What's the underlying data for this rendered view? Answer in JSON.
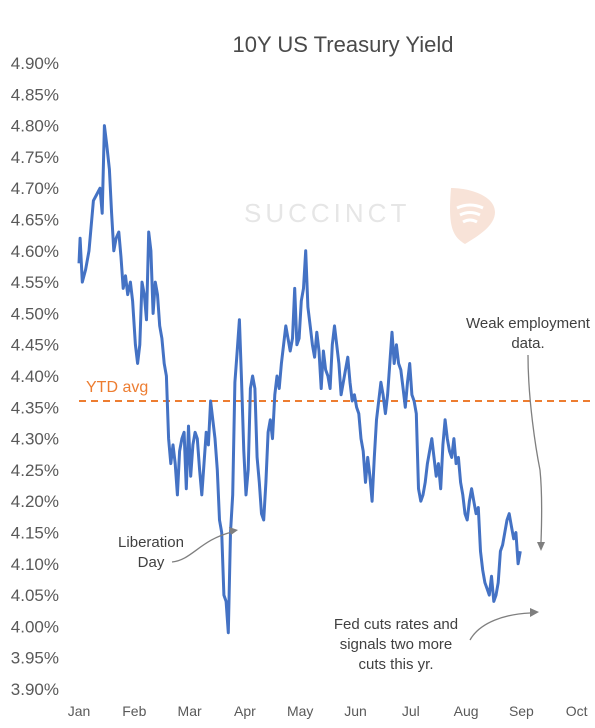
{
  "chart_data": {
    "type": "line",
    "title": "10Y US Treasury Yield",
    "watermark": "SUCCINCT",
    "ylim": [
      3.9,
      4.9
    ],
    "yticks": [
      "4.90%",
      "4.85%",
      "4.80%",
      "4.75%",
      "4.70%",
      "4.65%",
      "4.60%",
      "4.55%",
      "4.50%",
      "4.45%",
      "4.40%",
      "4.35%",
      "4.30%",
      "4.25%",
      "4.20%",
      "4.15%",
      "4.10%",
      "4.05%",
      "4.00%",
      "3.95%",
      "3.90%"
    ],
    "ytick_values": [
      4.9,
      4.85,
      4.8,
      4.75,
      4.7,
      4.65,
      4.6,
      4.55,
      4.5,
      4.45,
      4.4,
      4.35,
      4.3,
      4.25,
      4.2,
      4.15,
      4.1,
      4.05,
      4.0,
      3.95,
      3.9
    ],
    "xticks": [
      "Jan",
      "Feb",
      "Mar",
      "Apr",
      "May",
      "Jun",
      "Jul",
      "Aug",
      "Sep",
      "Oct"
    ],
    "xlim": [
      0,
      9
    ],
    "line_color": "#4472c4",
    "avg_color": "#ed7d31",
    "ytd_avg": {
      "label": "YTD avg",
      "value": 4.36
    },
    "annotations": [
      {
        "id": "liberation",
        "lines": [
          "Liberation",
          "Day"
        ]
      },
      {
        "id": "weak",
        "lines": [
          "Weak employment",
          "data."
        ]
      },
      {
        "id": "fed",
        "lines": [
          "Fed cuts rates and",
          "signals two more",
          "cuts this yr."
        ]
      }
    ],
    "series": [
      {
        "values": [
          [
            0.0,
            4.58
          ],
          [
            0.02,
            4.62
          ],
          [
            0.06,
            4.55
          ],
          [
            0.12,
            4.57
          ],
          [
            0.18,
            4.6
          ],
          [
            0.26,
            4.68
          ],
          [
            0.32,
            4.69
          ],
          [
            0.38,
            4.7
          ],
          [
            0.42,
            4.66
          ],
          [
            0.46,
            4.8
          ],
          [
            0.5,
            4.77
          ],
          [
            0.55,
            4.73
          ],
          [
            0.59,
            4.66
          ],
          [
            0.63,
            4.6
          ],
          [
            0.67,
            4.62
          ],
          [
            0.72,
            4.63
          ],
          [
            0.76,
            4.59
          ],
          [
            0.8,
            4.54
          ],
          [
            0.84,
            4.56
          ],
          [
            0.88,
            4.53
          ],
          [
            0.93,
            4.55
          ],
          [
            0.97,
            4.52
          ],
          [
            1.02,
            4.45
          ],
          [
            1.06,
            4.42
          ],
          [
            1.1,
            4.45
          ],
          [
            1.14,
            4.55
          ],
          [
            1.18,
            4.53
          ],
          [
            1.22,
            4.49
          ],
          [
            1.26,
            4.63
          ],
          [
            1.3,
            4.6
          ],
          [
            1.34,
            4.5
          ],
          [
            1.38,
            4.55
          ],
          [
            1.42,
            4.53
          ],
          [
            1.46,
            4.48
          ],
          [
            1.5,
            4.46
          ],
          [
            1.54,
            4.42
          ],
          [
            1.58,
            4.4
          ],
          [
            1.62,
            4.3
          ],
          [
            1.66,
            4.26
          ],
          [
            1.7,
            4.29
          ],
          [
            1.74,
            4.26
          ],
          [
            1.78,
            4.21
          ],
          [
            1.82,
            4.28
          ],
          [
            1.86,
            4.3
          ],
          [
            1.9,
            4.31
          ],
          [
            1.94,
            4.22
          ],
          [
            1.98,
            4.32
          ],
          [
            2.02,
            4.24
          ],
          [
            2.06,
            4.29
          ],
          [
            2.1,
            4.31
          ],
          [
            2.14,
            4.3
          ],
          [
            2.18,
            4.25
          ],
          [
            2.22,
            4.21
          ],
          [
            2.26,
            4.26
          ],
          [
            2.3,
            4.31
          ],
          [
            2.34,
            4.29
          ],
          [
            2.38,
            4.36
          ],
          [
            2.42,
            4.33
          ],
          [
            2.46,
            4.3
          ],
          [
            2.5,
            4.25
          ],
          [
            2.54,
            4.17
          ],
          [
            2.58,
            4.15
          ],
          [
            2.62,
            4.05
          ],
          [
            2.66,
            4.04
          ],
          [
            2.7,
            3.99
          ],
          [
            2.74,
            4.15
          ],
          [
            2.78,
            4.21
          ],
          [
            2.82,
            4.39
          ],
          [
            2.86,
            4.44
          ],
          [
            2.9,
            4.49
          ],
          [
            2.94,
            4.39
          ],
          [
            2.98,
            4.28
          ],
          [
            3.02,
            4.21
          ],
          [
            3.06,
            4.25
          ],
          [
            3.1,
            4.38
          ],
          [
            3.14,
            4.4
          ],
          [
            3.18,
            4.38
          ],
          [
            3.22,
            4.27
          ],
          [
            3.26,
            4.23
          ],
          [
            3.3,
            4.18
          ],
          [
            3.34,
            4.17
          ],
          [
            3.38,
            4.23
          ],
          [
            3.42,
            4.31
          ],
          [
            3.46,
            4.33
          ],
          [
            3.5,
            4.3
          ],
          [
            3.54,
            4.37
          ],
          [
            3.58,
            4.4
          ],
          [
            3.62,
            4.38
          ],
          [
            3.66,
            4.42
          ],
          [
            3.7,
            4.45
          ],
          [
            3.74,
            4.48
          ],
          [
            3.78,
            4.46
          ],
          [
            3.82,
            4.44
          ],
          [
            3.86,
            4.46
          ],
          [
            3.9,
            4.54
          ],
          [
            3.94,
            4.45
          ],
          [
            3.98,
            4.46
          ],
          [
            4.02,
            4.52
          ],
          [
            4.06,
            4.54
          ],
          [
            4.1,
            4.6
          ],
          [
            4.14,
            4.51
          ],
          [
            4.18,
            4.48
          ],
          [
            4.22,
            4.45
          ],
          [
            4.26,
            4.43
          ],
          [
            4.3,
            4.47
          ],
          [
            4.34,
            4.44
          ],
          [
            4.38,
            4.38
          ],
          [
            4.42,
            4.44
          ],
          [
            4.46,
            4.41
          ],
          [
            4.5,
            4.4
          ],
          [
            4.54,
            4.38
          ],
          [
            4.58,
            4.45
          ],
          [
            4.62,
            4.48
          ],
          [
            4.66,
            4.45
          ],
          [
            4.7,
            4.42
          ],
          [
            4.74,
            4.37
          ],
          [
            4.78,
            4.39
          ],
          [
            4.82,
            4.41
          ],
          [
            4.86,
            4.43
          ],
          [
            4.9,
            4.39
          ],
          [
            4.94,
            4.36
          ],
          [
            4.98,
            4.37
          ],
          [
            5.02,
            4.35
          ],
          [
            5.06,
            4.34
          ],
          [
            5.1,
            4.3
          ],
          [
            5.14,
            4.28
          ],
          [
            5.18,
            4.23
          ],
          [
            5.22,
            4.27
          ],
          [
            5.26,
            4.24
          ],
          [
            5.3,
            4.2
          ],
          [
            5.34,
            4.27
          ],
          [
            5.38,
            4.33
          ],
          [
            5.42,
            4.36
          ],
          [
            5.46,
            4.39
          ],
          [
            5.5,
            4.37
          ],
          [
            5.54,
            4.34
          ],
          [
            5.58,
            4.37
          ],
          [
            5.62,
            4.42
          ],
          [
            5.66,
            4.47
          ],
          [
            5.7,
            4.42
          ],
          [
            5.74,
            4.45
          ],
          [
            5.78,
            4.42
          ],
          [
            5.82,
            4.41
          ],
          [
            5.86,
            4.38
          ],
          [
            5.9,
            4.35
          ],
          [
            5.94,
            4.39
          ],
          [
            5.98,
            4.42
          ],
          [
            6.02,
            4.37
          ],
          [
            6.06,
            4.36
          ],
          [
            6.1,
            4.34
          ],
          [
            6.14,
            4.22
          ],
          [
            6.18,
            4.2
          ],
          [
            6.22,
            4.21
          ],
          [
            6.26,
            4.23
          ],
          [
            6.3,
            4.26
          ],
          [
            6.34,
            4.28
          ],
          [
            6.38,
            4.3
          ],
          [
            6.42,
            4.27
          ],
          [
            6.46,
            4.24
          ],
          [
            6.5,
            4.26
          ],
          [
            6.54,
            4.22
          ],
          [
            6.58,
            4.29
          ],
          [
            6.62,
            4.33
          ],
          [
            6.66,
            4.3
          ],
          [
            6.7,
            4.28
          ],
          [
            6.74,
            4.27
          ],
          [
            6.78,
            4.3
          ],
          [
            6.82,
            4.26
          ],
          [
            6.86,
            4.27
          ],
          [
            6.9,
            4.23
          ],
          [
            6.94,
            4.21
          ],
          [
            6.98,
            4.18
          ],
          [
            7.02,
            4.17
          ],
          [
            7.06,
            4.2
          ],
          [
            7.1,
            4.22
          ],
          [
            7.14,
            4.2
          ],
          [
            7.18,
            4.18
          ],
          [
            7.22,
            4.19
          ],
          [
            7.26,
            4.12
          ],
          [
            7.3,
            4.09
          ],
          [
            7.34,
            4.07
          ],
          [
            7.38,
            4.06
          ],
          [
            7.42,
            4.05
          ],
          [
            7.46,
            4.08
          ],
          [
            7.5,
            4.04
          ],
          [
            7.54,
            4.05
          ],
          [
            7.58,
            4.07
          ],
          [
            7.62,
            4.12
          ],
          [
            7.66,
            4.13
          ],
          [
            7.7,
            4.15
          ],
          [
            7.74,
            4.17
          ],
          [
            7.78,
            4.18
          ],
          [
            7.82,
            4.16
          ],
          [
            7.86,
            4.14
          ],
          [
            7.9,
            4.15
          ],
          [
            7.94,
            4.1
          ],
          [
            7.98,
            4.12
          ]
        ]
      }
    ]
  }
}
